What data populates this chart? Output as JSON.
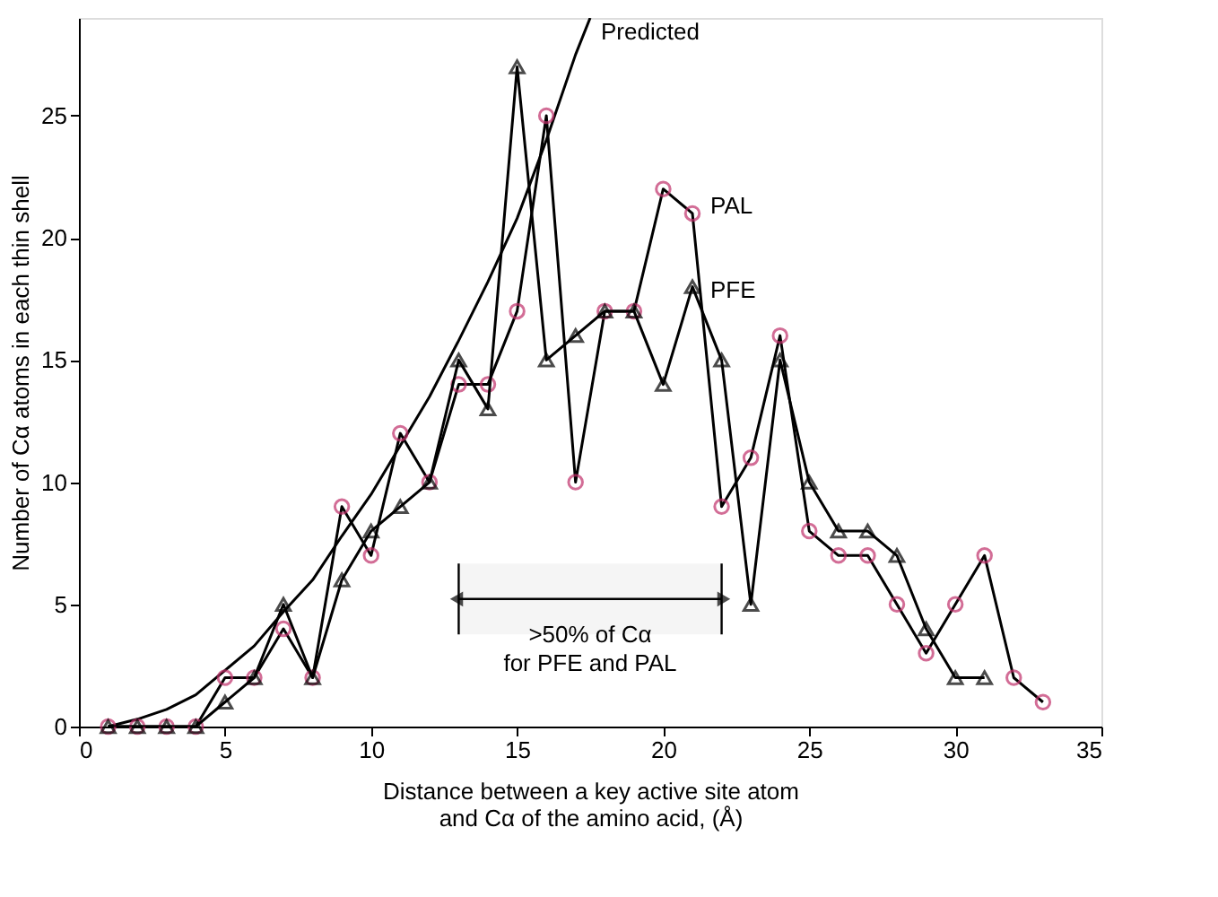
{
  "chart_data": {
    "type": "line",
    "xlabel": "Distance between a key active site atom\nand Cα of the amino acid, (Å)",
    "ylabel": "Number of Cα atoms in each thin shell",
    "xlim": [
      0,
      35
    ],
    "xticks": [
      0,
      5,
      10,
      15,
      20,
      25,
      30,
      35
    ],
    "ylim": [
      0,
      29
    ],
    "yticks": [
      0,
      5,
      10,
      15,
      20,
      25
    ],
    "grid": false,
    "legend": false,
    "series": [
      {
        "name": "Predicted",
        "color": "#000000",
        "marker": "none",
        "x": [
          1,
          2,
          3,
          4,
          5,
          6,
          7,
          8,
          9,
          10,
          11,
          12,
          13,
          14,
          15,
          16,
          17,
          17.5
        ],
        "values": [
          0,
          0.3,
          0.7,
          1.3,
          2.3,
          3.3,
          4.7,
          6,
          7.8,
          9.5,
          11.5,
          13.5,
          15.8,
          18.2,
          20.8,
          24,
          27.5,
          29
        ]
      },
      {
        "name": "PAL",
        "color": "#c0306a",
        "marker": "circle",
        "x": [
          1,
          2,
          3,
          4,
          5,
          6,
          7,
          8,
          9,
          10,
          11,
          12,
          13,
          14,
          15,
          16,
          17,
          18,
          19,
          20,
          21,
          22,
          23,
          24,
          25,
          26,
          27,
          28,
          29,
          30,
          31,
          32,
          33
        ],
        "values": [
          0,
          0,
          0,
          0,
          2,
          2,
          4,
          2,
          9,
          7,
          12,
          10,
          14,
          14,
          17,
          25,
          10,
          17,
          17,
          22,
          21,
          9,
          11,
          16,
          8,
          7,
          7,
          5,
          3,
          5,
          7,
          2,
          1
        ]
      },
      {
        "name": "PFE",
        "color": "#000000",
        "marker": "triangle",
        "x": [
          1,
          2,
          3,
          4,
          5,
          6,
          7,
          8,
          9,
          10,
          11,
          12,
          13,
          14,
          15,
          16,
          17,
          18,
          19,
          20,
          21,
          22,
          23,
          24,
          25,
          26,
          27,
          28,
          29,
          30,
          31
        ],
        "values": [
          0,
          0,
          0,
          0,
          1,
          2,
          5,
          2,
          6,
          8,
          9,
          10,
          15,
          13,
          27,
          15,
          16,
          17,
          17,
          14,
          18,
          15,
          5,
          15,
          10,
          8,
          8,
          7,
          4,
          2,
          2
        ]
      }
    ],
    "bands": [
      {
        "axis": "x",
        "from": 13,
        "to": 22,
        "label": ">50% of Cα\nfor PFE and PAL"
      }
    ]
  }
}
